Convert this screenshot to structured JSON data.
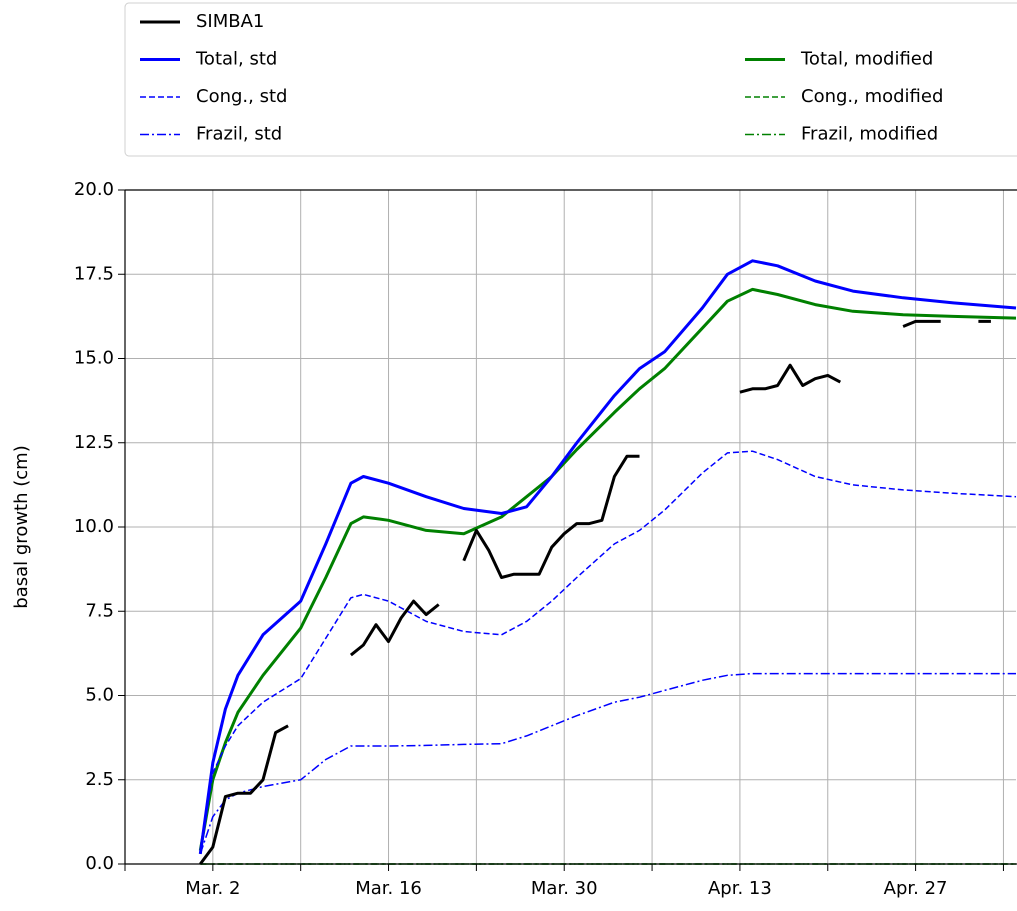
{
  "chart_data": {
    "type": "line",
    "y_label": "basal growth (cm)",
    "xlim": [
      "02-23",
      "05-05"
    ],
    "ylim": [
      0,
      20
    ],
    "xticks": [
      {
        "value": "03-02",
        "label": "Mar. 2"
      },
      {
        "value": "03-16",
        "label": "Mar. 16"
      },
      {
        "value": "03-30",
        "label": "Mar. 30"
      },
      {
        "value": "04-13",
        "label": "Apr. 13"
      },
      {
        "value": "04-27",
        "label": "Apr. 27"
      }
    ],
    "xminor_ticks": [
      "02-23",
      "03-09",
      "03-23",
      "04-06",
      "04-20",
      "05-04"
    ],
    "yticks": [
      {
        "value": 0,
        "label": "0.0"
      },
      {
        "value": 2.5,
        "label": "2.5"
      },
      {
        "value": 5,
        "label": "5.0"
      },
      {
        "value": 7.5,
        "label": "7.5"
      },
      {
        "value": 10,
        "label": "10.0"
      },
      {
        "value": 12.5,
        "label": "12.5"
      },
      {
        "value": 15,
        "label": "15.0"
      },
      {
        "value": 17.5,
        "label": "17.5"
      },
      {
        "value": 20,
        "label": "20.0"
      }
    ],
    "grid": true,
    "legend_loc": "above",
    "x": [
      "03-01",
      "03-02",
      "03-03",
      "03-04",
      "03-06",
      "03-09",
      "03-11",
      "03-13",
      "03-14",
      "03-16",
      "03-19",
      "03-22",
      "03-25",
      "03-27",
      "03-29",
      "03-31",
      "04-03",
      "04-05",
      "04-07",
      "04-10",
      "04-12",
      "04-14",
      "04-16",
      "04-19",
      "04-22",
      "04-26",
      "04-30",
      "05-05"
    ],
    "series": [
      {
        "name": "SIMBA1",
        "color": "#000000",
        "style": "solid",
        "width": 3,
        "x": [
          "03-01",
          "03-02",
          "03-03",
          "03-04",
          "03-05",
          "03-06",
          "03-07",
          "03-08",
          "03-09",
          "03-13",
          "03-14",
          "03-15",
          "03-16",
          "03-17",
          "03-18",
          "03-19",
          "03-20",
          "03-21",
          "03-22",
          "03-23",
          "03-24",
          "03-25",
          "03-26",
          "03-27",
          "03-28",
          "03-29",
          "03-30",
          "03-31",
          "04-01",
          "04-02",
          "04-03",
          "04-04",
          "04-05",
          "04-06",
          "04-13",
          "04-14",
          "04-15",
          "04-16",
          "04-17",
          "04-18",
          "04-19",
          "04-20",
          "04-21",
          "04-22",
          "04-26",
          "04-27",
          "04-28",
          "04-29",
          "04-30",
          "05-02",
          "05-03"
        ],
        "values": [
          0.0,
          0.5,
          2.0,
          2.1,
          2.1,
          2.5,
          3.9,
          4.1,
          null,
          6.2,
          6.5,
          7.1,
          6.6,
          7.3,
          7.8,
          7.4,
          7.7,
          null,
          9.0,
          9.9,
          9.3,
          8.5,
          8.6,
          8.6,
          8.6,
          9.4,
          9.8,
          10.1,
          10.1,
          10.2,
          11.5,
          12.1,
          12.1,
          null,
          14.0,
          14.1,
          14.1,
          14.2,
          14.8,
          14.2,
          14.4,
          14.5,
          14.3,
          null,
          15.95,
          16.1,
          16.1,
          16.1,
          null,
          16.1,
          16.1
        ]
      },
      {
        "name": "Total, std",
        "color": "#0000ff",
        "style": "solid",
        "width": 3,
        "values": [
          0.3,
          3.0,
          4.6,
          5.6,
          6.8,
          7.8,
          9.5,
          11.3,
          11.5,
          11.3,
          10.9,
          10.55,
          10.4,
          10.6,
          11.5,
          12.5,
          13.9,
          14.7,
          15.2,
          16.5,
          17.5,
          17.9,
          17.75,
          17.3,
          17.0,
          16.8,
          16.65,
          16.5
        ]
      },
      {
        "name": "Cong., std",
        "color": "#0000ff",
        "style": "dashed",
        "width": 1.5,
        "values": [
          0.3,
          2.7,
          3.5,
          4.1,
          4.8,
          5.5,
          6.7,
          7.9,
          8.0,
          7.8,
          7.2,
          6.9,
          6.8,
          7.2,
          7.8,
          8.5,
          9.5,
          9.9,
          10.5,
          11.6,
          12.2,
          12.25,
          12.0,
          11.5,
          11.25,
          11.1,
          11.0,
          10.9
        ]
      },
      {
        "name": "Frazil, std",
        "color": "#0000ff",
        "style": "dashdot",
        "width": 1.5,
        "values": [
          0.3,
          1.4,
          1.9,
          2.1,
          2.3,
          2.5,
          3.1,
          3.5,
          3.5,
          3.5,
          3.52,
          3.55,
          3.57,
          3.8,
          4.1,
          4.4,
          4.8,
          4.95,
          5.15,
          5.45,
          5.6,
          5.65,
          5.65,
          5.65,
          5.65,
          5.65,
          5.65,
          5.65
        ]
      },
      {
        "name": "Total, modified",
        "color": "#008000",
        "style": "solid",
        "width": 3,
        "values": [
          0.4,
          2.5,
          3.6,
          4.5,
          5.6,
          7.0,
          8.5,
          10.1,
          10.3,
          10.2,
          9.9,
          9.8,
          10.3,
          10.9,
          11.5,
          12.3,
          13.4,
          14.1,
          14.7,
          15.9,
          16.7,
          17.05,
          16.9,
          16.6,
          16.4,
          16.3,
          16.25,
          16.2
        ]
      },
      {
        "name": "Cong., modified",
        "color": "#008000",
        "style": "dashed",
        "width": 1.5,
        "values": [
          0,
          0,
          0,
          0,
          0,
          0,
          0,
          0,
          0,
          0,
          0,
          0,
          0,
          0,
          0,
          0,
          0,
          0,
          0,
          0,
          0,
          0,
          0,
          0,
          0,
          0,
          0,
          0
        ]
      },
      {
        "name": "Frazil,  modified",
        "color": "#008000",
        "style": "dashdot",
        "width": 1.5,
        "values": [
          0,
          0,
          0,
          0,
          0,
          0,
          0,
          0,
          0,
          0,
          0,
          0,
          0,
          0,
          0,
          0,
          0,
          0,
          0,
          0,
          0,
          0,
          0,
          0,
          0,
          0,
          0,
          0
        ]
      }
    ]
  }
}
